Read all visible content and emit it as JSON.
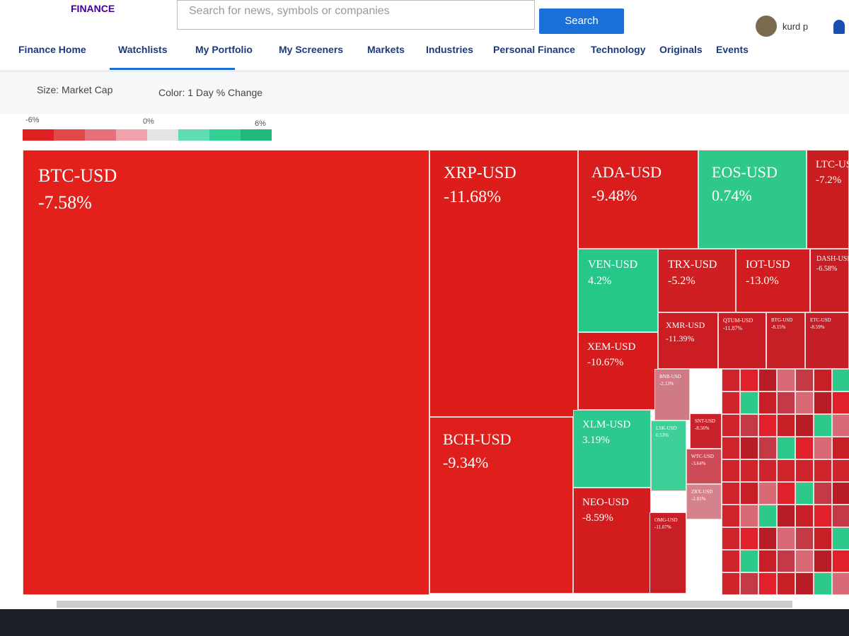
{
  "header": {
    "logo": "FINANCE",
    "search_placeholder": "Search for news, symbols or companies",
    "search_button": "Search",
    "user": "kurd p"
  },
  "nav": [
    "Finance Home",
    "Watchlists",
    "My Portfolio",
    "My Screeners",
    "Markets",
    "Industries",
    "Personal Finance",
    "Technology",
    "Originals",
    "Events"
  ],
  "controls": {
    "size": "Size: Market Cap",
    "color": "Color: 1 Day % Change"
  },
  "legend": {
    "min": "-6%",
    "mid": "0%",
    "max": "6%"
  },
  "tiles": [
    {
      "symbol": "BTC-USD",
      "change": "-7.58%",
      "color": "#e3201b"
    },
    {
      "symbol": "XRP-USD",
      "change": "-11.68%",
      "color": "#dd1d1a"
    },
    {
      "symbol": "BCH-USD",
      "change": "-9.34%",
      "color": "#df1f1b"
    },
    {
      "symbol": "ADA-USD",
      "change": "-9.48%",
      "color": "#d81d1c"
    },
    {
      "symbol": "EOS-USD",
      "change": "0.74%",
      "color": "#2ec98a"
    },
    {
      "symbol": "LTC-USD",
      "change": "-7.2%",
      "color": "#c91d20"
    },
    {
      "symbol": "VEN-USD",
      "change": "4.2%",
      "color": "#26c88a"
    },
    {
      "symbol": "TRX-USD",
      "change": "-5.2%",
      "color": "#cf1f22"
    },
    {
      "symbol": "IOT-USD",
      "change": "-13.0%",
      "color": "#d11d20"
    },
    {
      "symbol": "DASH-USD",
      "change": "-6.58%",
      "color": "#c81d22"
    },
    {
      "symbol": "XEM-USD",
      "change": "-10.67%",
      "color": "#d81c1d"
    },
    {
      "symbol": "XMR-USD",
      "change": "-11.39%",
      "color": "#cc1d22"
    },
    {
      "symbol": "QTUM-USD",
      "change": "-11.87%",
      "color": "#c81d24"
    },
    {
      "symbol": "BTG-USD",
      "change": "-8.15%",
      "color": "#c61f26"
    },
    {
      "symbol": "ETC-USD",
      "change": "-8.59%",
      "color": "#c41f27"
    },
    {
      "symbol": "XLM-USD",
      "change": "3.19%",
      "color": "#2cc98e"
    },
    {
      "symbol": "NEO-USD",
      "change": "-8.59%",
      "color": "#d31c1e"
    },
    {
      "symbol": "BNB-USD",
      "change": "-2.13%",
      "color": "#d07a86"
    },
    {
      "symbol": "LSK-USD",
      "change": "0.53%",
      "color": "#3fcf99"
    },
    {
      "symbol": "SNT-USD",
      "change": "-8.56%",
      "color": "#c8232c"
    },
    {
      "symbol": "WTC-USD",
      "change": "-3.64%",
      "color": "#cc4b56"
    },
    {
      "symbol": "ZRX-USD",
      "change": "-2.81%",
      "color": "#d4838d"
    },
    {
      "symbol": "OMG-USD",
      "change": "-11.07%",
      "color": "#c81e25"
    }
  ]
}
